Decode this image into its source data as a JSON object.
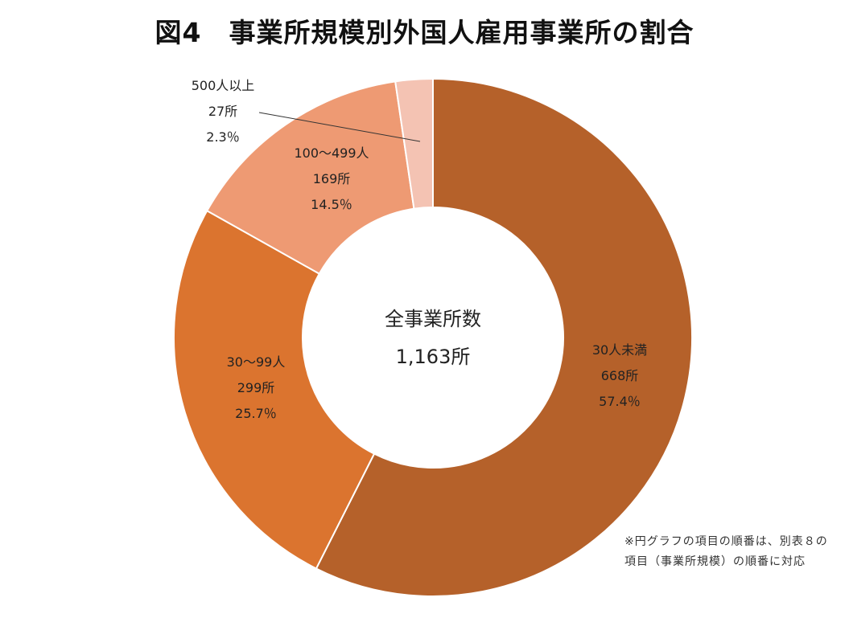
{
  "title": "図4　事業所規模別外国人雇用事業所の割合",
  "center": {
    "title": "全事業所数",
    "total": "1,163所"
  },
  "note": "※円グラフの項目の順番は、別表８の項目（事業所規模）の順番に対応",
  "chart_data": {
    "type": "pie",
    "style": "donut",
    "total": 1163,
    "total_label": "1,163所",
    "slices": [
      {
        "category": "30人未満",
        "count": 668,
        "count_label": "668所",
        "percent": 57.4,
        "percent_label": "57.4％",
        "color": "#B5612A"
      },
      {
        "category": "30～99人",
        "count": 299,
        "count_label": "299所",
        "percent": 25.7,
        "percent_label": "25.7％",
        "color": "#DB742F"
      },
      {
        "category": "100～499人",
        "count": 169,
        "count_label": "169所",
        "percent": 14.5,
        "percent_label": "14.5％",
        "color": "#EE9A73"
      },
      {
        "category": "500人以上",
        "count": 27,
        "count_label": "27所",
        "percent": 2.3,
        "percent_label": "2.3％",
        "color": "#F4C3B3"
      }
    ],
    "start": "top",
    "direction": "clockwise"
  }
}
